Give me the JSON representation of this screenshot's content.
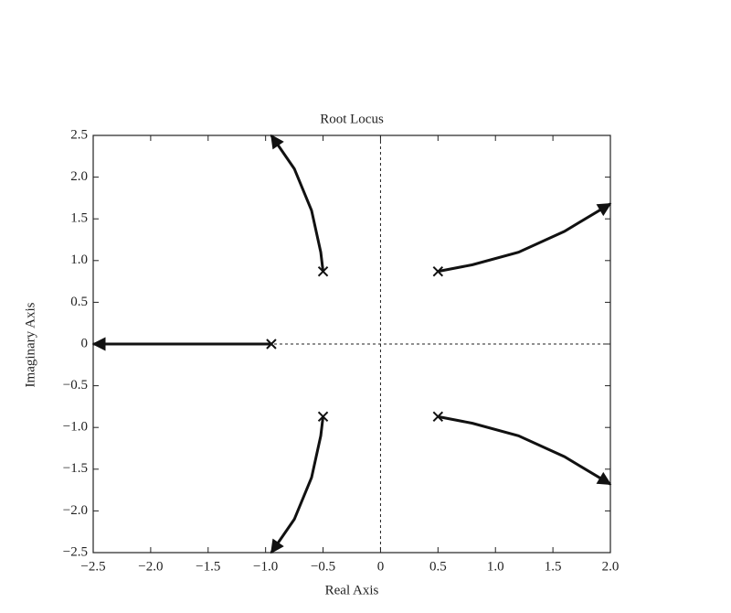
{
  "chart_data": {
    "type": "line",
    "title": "Root Locus",
    "x_label": "Real Axis",
    "y_label": "Imaginary Axis",
    "xlim": [
      -2.5,
      2.0
    ],
    "xticks": [
      {
        "value": -2.5,
        "label": "−2.5"
      },
      {
        "value": -2.0,
        "label": "−2.0"
      },
      {
        "value": -1.5,
        "label": "−1.5"
      },
      {
        "value": -1.0,
        "label": "−1.0"
      },
      {
        "value": -0.5,
        "label": "−0.5"
      },
      0,
      0.5,
      {
        "value": 1.0,
        "label": "1.0"
      },
      1.5,
      {
        "value": 2.0,
        "label": "2.0"
      }
    ],
    "ylim": [
      -2.5,
      2.5
    ],
    "yticks": [
      {
        "value": -2.5,
        "label": "−2.5"
      },
      {
        "value": -2.0,
        "label": "−2.0"
      },
      {
        "value": -1.5,
        "label": "−1.5"
      },
      {
        "value": -1.0,
        "label": "−1.0"
      },
      {
        "value": -0.5,
        "label": "−0.5"
      },
      0,
      0.5,
      {
        "value": 1.0,
        "label": "1.0"
      },
      1.5,
      {
        "value": 2.0,
        "label": "2.0"
      },
      2.5
    ],
    "series": [
      {
        "color": "#111111",
        "x": [
          -0.5,
          -0.52,
          -0.6,
          -0.75,
          -0.95
        ],
        "values": [
          0.87,
          1.1,
          1.6,
          2.1,
          2.5
        ]
      },
      {
        "color": "#111111",
        "x": [
          -0.95,
          -2.5
        ],
        "values": [
          0,
          0
        ]
      },
      {
        "color": "#111111",
        "x": [
          -0.5,
          -0.52,
          -0.6,
          -0.75,
          -0.95
        ],
        "values": [
          -0.87,
          -1.1,
          -1.6,
          -2.1,
          -2.5
        ]
      },
      {
        "color": "#111111",
        "x": [
          0.5,
          0.8,
          1.2,
          1.6,
          2.0
        ],
        "values": [
          0.87,
          0.95,
          1.1,
          1.35,
          1.68
        ]
      },
      {
        "color": "#111111",
        "x": [
          0.5,
          0.8,
          1.2,
          1.6,
          2.0
        ],
        "values": [
          -0.87,
          -0.95,
          -1.1,
          -1.35,
          -1.68
        ]
      }
    ],
    "poles": {
      "x": [
        -0.95,
        -0.5,
        -0.5,
        0.5,
        0.5
      ],
      "y": [
        0,
        0.87,
        -0.87,
        0.87,
        -0.87
      ]
    }
  }
}
